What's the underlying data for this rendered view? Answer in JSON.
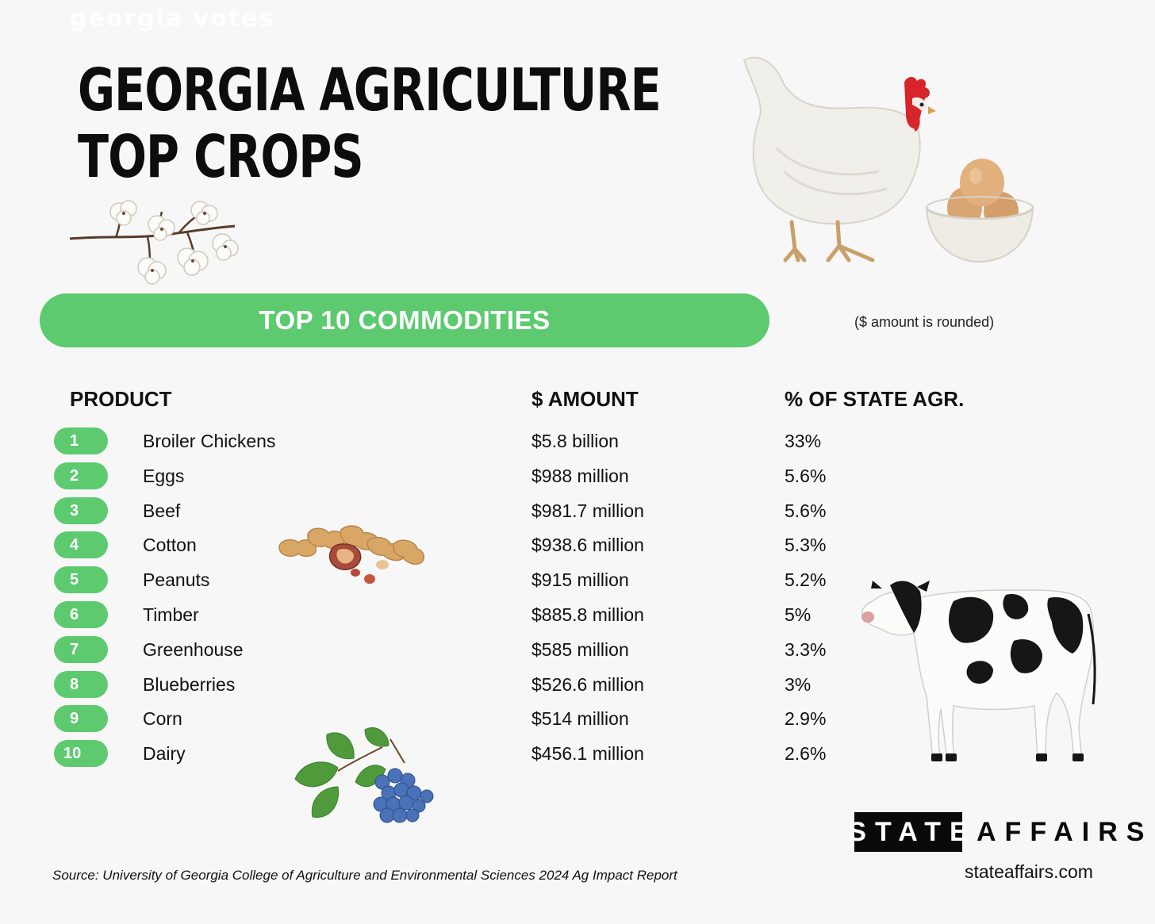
{
  "watermark": "georgia votes",
  "title": {
    "line1": "GEORGIA AGRICULTURE",
    "line2": "TOP CROPS"
  },
  "banner": {
    "label": "TOP 10 COMMODITIES",
    "color": "#5dca70"
  },
  "note": "($ amount is rounded)",
  "columns": {
    "product": "PRODUCT",
    "amount": "$ AMOUNT",
    "share": "% OF STATE AGR."
  },
  "rows": [
    {
      "rank": "1",
      "product": "Broiler Chickens",
      "amount": "$5.8 billion",
      "share": "33%"
    },
    {
      "rank": "2",
      "product": "Eggs",
      "amount": "$988 million",
      "share": "5.6%"
    },
    {
      "rank": "3",
      "product": "Beef",
      "amount": "$981.7 million",
      "share": "5.6%"
    },
    {
      "rank": "4",
      "product": "Cotton",
      "amount": "$938.6 million",
      "share": "5.3%"
    },
    {
      "rank": "5",
      "product": "Peanuts",
      "amount": "$915 million",
      "share": "5.2%"
    },
    {
      "rank": "6",
      "product": "Timber",
      "amount": "$885.8 million",
      "share": "5%"
    },
    {
      "rank": "7",
      "product": "Greenhouse",
      "amount": "$585 million",
      "share": "3.3%"
    },
    {
      "rank": "8",
      "product": "Blueberries",
      "amount": "$526.6 million",
      "share": "3%"
    },
    {
      "rank": "9",
      "product": "Corn",
      "amount": "$514 million",
      "share": "2.9%"
    },
    {
      "rank": "10",
      "product": "Dairy",
      "amount": "$456.1 million",
      "share": "2.6%"
    }
  ],
  "source": "Source: University of Georgia College of Agriculture and Environmental Sciences 2024 Ag Impact Report",
  "logo": {
    "box": "STATE",
    "rest": "AFFAIRS"
  },
  "website": "stateaffairs.com",
  "illustrations": [
    "cotton-branch-icon",
    "chicken-icon",
    "egg-bowl-icon",
    "peanuts-icon",
    "blueberries-icon",
    "cow-icon"
  ]
}
